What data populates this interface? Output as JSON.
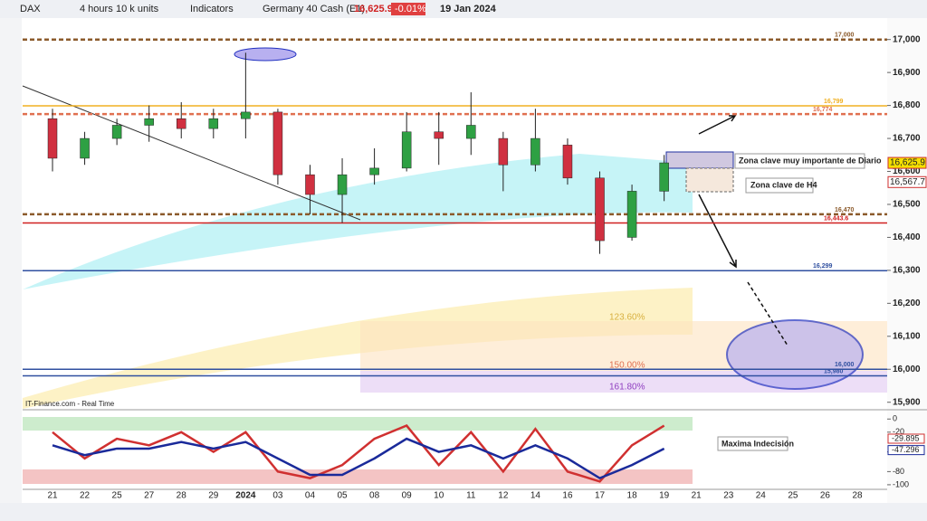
{
  "toolbar": {
    "symbol": "DAX",
    "timeframe": "4 hours",
    "units": "10 k units",
    "indicators": "Indicators",
    "instrument": "Germany 40 Cash (E1)",
    "price": "16,625.9",
    "change": "-0.01%",
    "date": "19 Jan 2024"
  },
  "annotations": {
    "daily_zone": "Zona clave muy importante de Diario",
    "h4_zone": "Zona clave de H4",
    "indecision": "Maxima Indecisión",
    "source": "IT-Finance.com - Real Time",
    "fib1": "123.60%",
    "fib2": "150.00%",
    "fib3": "161.80%"
  },
  "chart_data": [
    {
      "type": "candlestick",
      "categories": [
        "21",
        "22",
        "25",
        "27",
        "28",
        "29",
        "2024",
        "03",
        "04",
        "05",
        "08",
        "09",
        "10",
        "11",
        "12",
        "14",
        "16",
        "17",
        "18",
        "19",
        "21",
        "23",
        "24",
        "25",
        "26",
        "28"
      ],
      "open": [
        16760,
        16640,
        16700,
        16740,
        16760,
        16730,
        16760,
        16780,
        16590,
        16530,
        16590,
        16610,
        16720,
        16700,
        16700,
        16620,
        16680,
        16580,
        16400,
        16540,
        null,
        null,
        null,
        null,
        null,
        null
      ],
      "high": [
        16790,
        16720,
        16760,
        16800,
        16810,
        16790,
        16960,
        16790,
        16620,
        16640,
        16670,
        16780,
        16780,
        16840,
        16720,
        16790,
        16700,
        16600,
        16560,
        16650,
        null,
        null,
        null,
        null,
        null,
        null
      ],
      "low": [
        16600,
        16620,
        16680,
        16690,
        16700,
        16700,
        16700,
        16560,
        16470,
        16444,
        16560,
        16600,
        16620,
        16650,
        16540,
        16600,
        16560,
        16350,
        16390,
        16510,
        null,
        null,
        null,
        null,
        null,
        null
      ],
      "close": [
        16640,
        16700,
        16740,
        16760,
        16730,
        16760,
        16780,
        16590,
        16530,
        16590,
        16610,
        16720,
        16700,
        16740,
        16620,
        16700,
        16580,
        16390,
        16540,
        16626,
        null,
        null,
        null,
        null,
        null,
        null
      ],
      "up_color": "#2ea043",
      "down_color": "#d03040",
      "ylim": [
        15880,
        17065
      ],
      "yticks": [
        {
          "value": 17000,
          "label": "17,000"
        },
        {
          "value": 16900,
          "label": "16,900"
        },
        {
          "value": 16800,
          "label": "16,800"
        },
        {
          "value": 16700,
          "label": "16,700"
        },
        {
          "value": 16600,
          "label": "16,600"
        },
        {
          "value": 16500,
          "label": "16,500"
        },
        {
          "value": 16400,
          "label": "16,400"
        },
        {
          "value": 16300,
          "label": "16,300"
        },
        {
          "value": 16200,
          "label": "16,200"
        },
        {
          "value": 16100,
          "label": "16,100"
        },
        {
          "value": 16000,
          "label": "16,000"
        },
        {
          "value": 15900,
          "label": "15,900"
        }
      ],
      "levels": [
        {
          "value": 17000,
          "label": "17,000",
          "color": "#8b5a2b",
          "dashed": true
        },
        {
          "value": 16799,
          "label": "16,799",
          "color": "#f0b020",
          "dashed": false
        },
        {
          "value": 16774,
          "label": "16,774",
          "color": "#e07050",
          "dashed": true
        },
        {
          "value": 16470,
          "label": "16,470",
          "color": "#8b5a2b",
          "dashed": true
        },
        {
          "value": 16443.6,
          "label": "16,443.6",
          "color": "#d02020",
          "dashed": false
        },
        {
          "value": 16299,
          "label": "16,299",
          "color": "#3050a0",
          "dashed": false
        },
        {
          "value": 16000,
          "label": "16,000",
          "color": "#3050a0",
          "dashed": false
        },
        {
          "value": 15980,
          "label": "15,980",
          "color": "#3050a0",
          "dashed": false
        }
      ],
      "price_tags": [
        {
          "value": 16625.9,
          "label": "16,625.9",
          "color": "#f5e000"
        },
        {
          "value": 16567.7,
          "label": "16,567.7",
          "color": "#ffffff"
        }
      ]
    },
    {
      "type": "line",
      "series": [
        {
          "color": "#d03030",
          "values": [
            -20,
            -60,
            -30,
            -40,
            -20,
            -50,
            -20,
            -80,
            -90,
            -70,
            -30,
            -10,
            -70,
            -20,
            -80,
            -15,
            -80,
            -95,
            -40,
            -10,
            null,
            null,
            null,
            null,
            null,
            null
          ]
        },
        {
          "color": "#1a2a9a",
          "values": [
            -40,
            -55,
            -45,
            -45,
            -35,
            -45,
            -35,
            -60,
            -85,
            -85,
            -60,
            -30,
            -50,
            -40,
            -60,
            -40,
            -60,
            -90,
            -70,
            -45,
            null,
            null,
            null,
            null,
            null,
            null
          ]
        }
      ],
      "ylim": [
        -107,
        10
      ],
      "yticks": [
        0,
        -20,
        -50,
        -80,
        -100
      ],
      "current_values": [
        -29.895,
        -47.296
      ]
    }
  ]
}
